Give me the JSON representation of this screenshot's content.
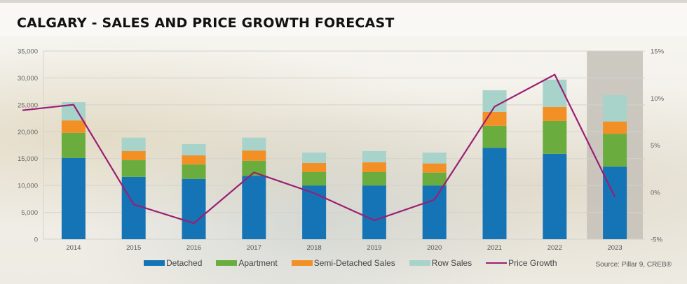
{
  "page": {
    "title": "CALGARY - SALES AND PRICE GROWTH FORECAST",
    "source": "Source: Pillar 9, CREB®"
  },
  "colors": {
    "detached": "#1574b6",
    "apartment": "#6aad3e",
    "semi": "#f28f25",
    "row": "#a7d3cb",
    "price": "#9a1f74",
    "forecast_shade": "#c4c1b8",
    "grid": "#d5d2cc"
  },
  "chart_data": {
    "type": "bar",
    "stacked": true,
    "title": "CALGARY - SALES AND PRICE GROWTH FORECAST",
    "categories": [
      "2014",
      "2015",
      "2016",
      "2017",
      "2018",
      "2019",
      "2020",
      "2021",
      "2022",
      "2023"
    ],
    "series": [
      {
        "name": "Detached",
        "key": "detached",
        "axis": "left",
        "values": [
          15100,
          11600,
          11200,
          11800,
          10000,
          10000,
          10000,
          17000,
          15900,
          13500
        ]
      },
      {
        "name": "Apartment",
        "key": "apartment",
        "axis": "left",
        "values": [
          4700,
          3100,
          2700,
          2800,
          2500,
          2500,
          2400,
          4100,
          6100,
          6100
        ]
      },
      {
        "name": "Semi-Detached Sales",
        "key": "semi",
        "axis": "left",
        "values": [
          2300,
          1700,
          1700,
          1900,
          1700,
          1800,
          1700,
          2600,
          2600,
          2300
        ]
      },
      {
        "name": "Row Sales",
        "key": "row",
        "axis": "left",
        "values": [
          3400,
          2500,
          2100,
          2400,
          1900,
          2100,
          2000,
          4000,
          5100,
          4900
        ]
      },
      {
        "name": "Price Growth",
        "key": "price",
        "type": "line",
        "axis": "right",
        "lead_in": 8.7,
        "values": [
          9.3,
          -1.3,
          -3.3,
          2.1,
          -0.1,
          -3.0,
          -0.8,
          9.1,
          12.5,
          -0.5
        ]
      }
    ],
    "forecast_category": "2023",
    "left_axis": {
      "min": 0,
      "max": 35000,
      "step": 5000,
      "ticks": [
        "0",
        "5,000",
        "10,000",
        "15,000",
        "20,000",
        "25,000",
        "30,000",
        "35,000"
      ]
    },
    "right_axis": {
      "min": -5,
      "max": 15,
      "step": 5,
      "ticks": [
        "-5%",
        "0%",
        "5%",
        "10%",
        "15%"
      ]
    },
    "grid": true,
    "legend": {
      "position": "bottom",
      "entries": [
        "Detached",
        "Apartment",
        "Semi-Detached Sales",
        "Row Sales",
        "Price Growth"
      ]
    },
    "xlabel": "",
    "ylabel": ""
  }
}
